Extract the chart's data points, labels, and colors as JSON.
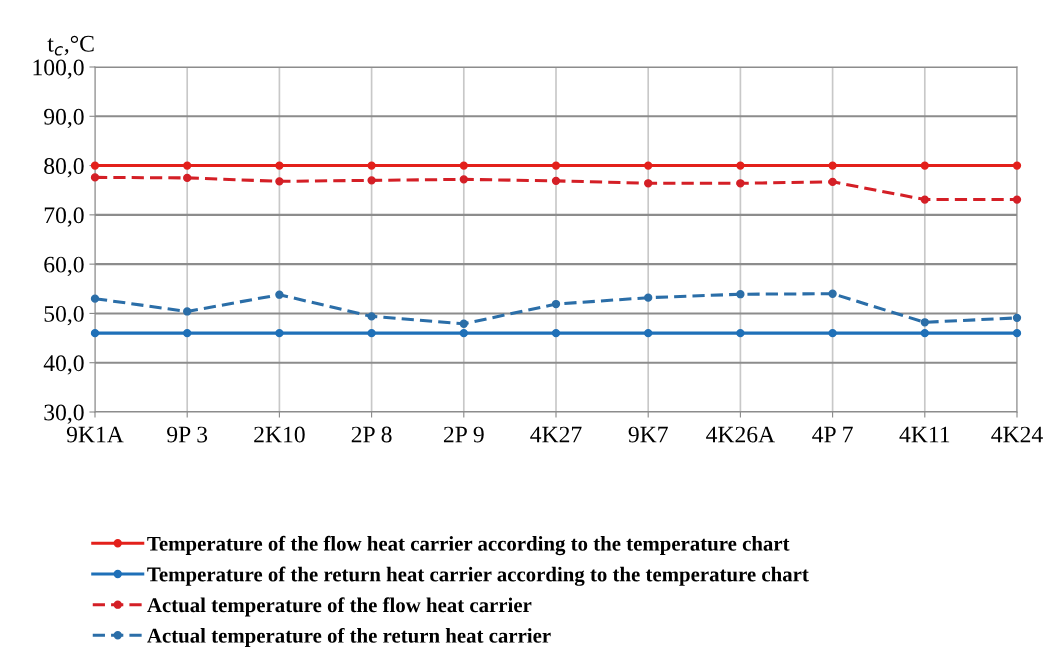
{
  "chart_data": {
    "type": "line",
    "ylabel": "t$_{c}$,°C",
    "categories": [
      "9K1A",
      "9P 3",
      "2K10",
      "2P 8",
      "2P 9",
      "4K27",
      "9K7",
      "4K26A",
      "4P 7",
      "4K11",
      "4K24"
    ],
    "series": [
      {
        "name": "Temperature of the flow heat carrier according to the temperature chart",
        "color": "#e3201b",
        "line_style": "solid",
        "values": [
          80,
          80,
          80,
          80,
          80,
          80,
          80,
          80,
          80,
          80,
          80
        ]
      },
      {
        "name": "Temperature of the return heat carrier according to the temperature chart",
        "color": "#1f70b8",
        "line_style": "solid",
        "values": [
          46,
          46,
          46,
          46,
          46,
          46,
          46,
          46,
          46,
          46,
          46
        ]
      },
      {
        "name": "Actual temperature of the flow heat carrier",
        "color": "#d41f26",
        "line_style": "dashed",
        "values": [
          77.6,
          77.5,
          76.8,
          77.0,
          77.2,
          76.9,
          76.4,
          76.4,
          76.7,
          73.1,
          73.1
        ]
      },
      {
        "name": "Actual temperature of the return heat carrier",
        "color": "#2b6ea8",
        "line_style": "dashed",
        "values": [
          53.0,
          50.4,
          53.8,
          49.4,
          47.9,
          51.9,
          53.2,
          53.9,
          54.0,
          48.2,
          49.1
        ]
      }
    ],
    "ylim": [
      30,
      100
    ],
    "yticks": [
      {
        "value": 30,
        "label": "30,0"
      },
      {
        "value": 40,
        "label": "40,0"
      },
      {
        "value": 50,
        "label": "50,0"
      },
      {
        "value": 60,
        "label": "60,0"
      },
      {
        "value": 70,
        "label": "70,0"
      },
      {
        "value": 80,
        "label": "80,0"
      },
      {
        "value": 90,
        "label": "90,0"
      },
      {
        "value": 100,
        "label": "100,0"
      }
    ],
    "grid": true,
    "legend": "bottom",
    "marker": "circle"
  }
}
